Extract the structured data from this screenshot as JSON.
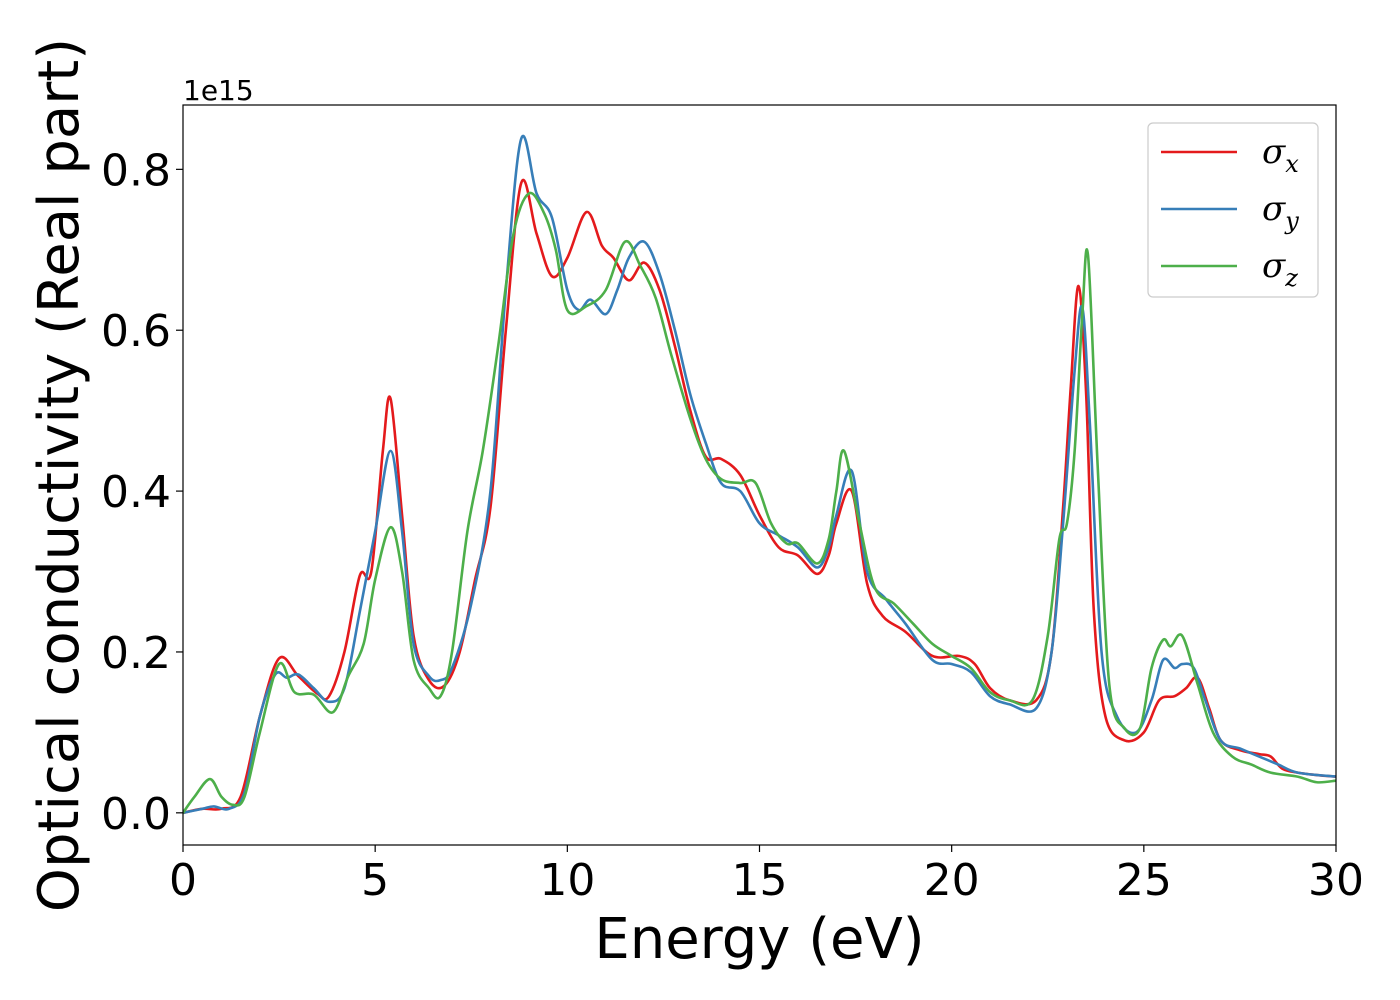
{
  "chart_data": {
    "type": "line",
    "xlabel": "Energy (eV)",
    "ylabel": "Optical conductivity (Real part)",
    "y_offset_label": "1e15",
    "xlim": [
      0,
      30
    ],
    "ylim": [
      -0.04,
      0.88
    ],
    "xticks": [
      0,
      5,
      10,
      15,
      20,
      25,
      30
    ],
    "xtick_labels": [
      "0",
      "5",
      "10",
      "15",
      "20",
      "25",
      "30"
    ],
    "yticks": [
      0.0,
      0.2,
      0.4,
      0.6,
      0.8
    ],
    "ytick_labels": [
      "0.0",
      "0.2",
      "0.4",
      "0.6",
      "0.8"
    ],
    "grid": false,
    "legend_position": "top-right",
    "series": [
      {
        "name": "σx",
        "symbol": "σ",
        "subscript": "x",
        "color": "#e41a1c",
        "points": [
          [
            0,
            0
          ],
          [
            0.5,
            0.005
          ],
          [
            1,
            0.005
          ],
          [
            1.5,
            0.02
          ],
          [
            2,
            0.12
          ],
          [
            2.5,
            0.192
          ],
          [
            3,
            0.17
          ],
          [
            3.5,
            0.148
          ],
          [
            3.8,
            0.145
          ],
          [
            4.2,
            0.2
          ],
          [
            4.6,
            0.295
          ],
          [
            4.9,
            0.3
          ],
          [
            5.2,
            0.45
          ],
          [
            5.4,
            0.515
          ],
          [
            5.7,
            0.37
          ],
          [
            6,
            0.22
          ],
          [
            6.4,
            0.165
          ],
          [
            6.8,
            0.158
          ],
          [
            7.2,
            0.2
          ],
          [
            7.6,
            0.29
          ],
          [
            8,
            0.38
          ],
          [
            8.4,
            0.6
          ],
          [
            8.8,
            0.783
          ],
          [
            9.2,
            0.72
          ],
          [
            9.6,
            0.667
          ],
          [
            10,
            0.69
          ],
          [
            10.5,
            0.747
          ],
          [
            10.9,
            0.705
          ],
          [
            11.2,
            0.69
          ],
          [
            11.6,
            0.662
          ],
          [
            12,
            0.684
          ],
          [
            12.4,
            0.65
          ],
          [
            12.8,
            0.58
          ],
          [
            13.2,
            0.5
          ],
          [
            13.6,
            0.443
          ],
          [
            14,
            0.44
          ],
          [
            14.5,
            0.42
          ],
          [
            15,
            0.37
          ],
          [
            15.5,
            0.33
          ],
          [
            16,
            0.32
          ],
          [
            16.5,
            0.297
          ],
          [
            16.8,
            0.32
          ],
          [
            17,
            0.36
          ],
          [
            17.4,
            0.4
          ],
          [
            17.8,
            0.285
          ],
          [
            18.2,
            0.245
          ],
          [
            18.8,
            0.225
          ],
          [
            19.5,
            0.195
          ],
          [
            20.2,
            0.195
          ],
          [
            20.6,
            0.185
          ],
          [
            21,
            0.155
          ],
          [
            21.5,
            0.14
          ],
          [
            22.2,
            0.14
          ],
          [
            22.6,
            0.2
          ],
          [
            22.9,
            0.38
          ],
          [
            23.1,
            0.53
          ],
          [
            23.3,
            0.655
          ],
          [
            23.5,
            0.52
          ],
          [
            23.7,
            0.25
          ],
          [
            24,
            0.12
          ],
          [
            24.5,
            0.09
          ],
          [
            25,
            0.1
          ],
          [
            25.4,
            0.14
          ],
          [
            25.8,
            0.145
          ],
          [
            26.1,
            0.155
          ],
          [
            26.4,
            0.168
          ],
          [
            26.7,
            0.13
          ],
          [
            27,
            0.09
          ],
          [
            27.5,
            0.078
          ],
          [
            28,
            0.073
          ],
          [
            28.3,
            0.07
          ],
          [
            28.6,
            0.055
          ],
          [
            29,
            0.05
          ],
          [
            29.5,
            0.047
          ],
          [
            30,
            0.045
          ]
        ]
      },
      {
        "name": "σy",
        "symbol": "σ",
        "subscript": "y",
        "color": "#377eb8",
        "points": [
          [
            0,
            0
          ],
          [
            0.5,
            0.005
          ],
          [
            0.8,
            0.008
          ],
          [
            1.2,
            0.005
          ],
          [
            1.6,
            0.025
          ],
          [
            2,
            0.12
          ],
          [
            2.4,
            0.172
          ],
          [
            2.7,
            0.168
          ],
          [
            3,
            0.172
          ],
          [
            3.4,
            0.155
          ],
          [
            3.8,
            0.138
          ],
          [
            4.2,
            0.155
          ],
          [
            4.6,
            0.25
          ],
          [
            5,
            0.35
          ],
          [
            5.4,
            0.45
          ],
          [
            5.7,
            0.35
          ],
          [
            6,
            0.21
          ],
          [
            6.4,
            0.17
          ],
          [
            6.7,
            0.165
          ],
          [
            7,
            0.18
          ],
          [
            7.5,
            0.26
          ],
          [
            8,
            0.4
          ],
          [
            8.4,
            0.65
          ],
          [
            8.8,
            0.838
          ],
          [
            9.2,
            0.77
          ],
          [
            9.6,
            0.74
          ],
          [
            10,
            0.65
          ],
          [
            10.3,
            0.625
          ],
          [
            10.6,
            0.638
          ],
          [
            11,
            0.62
          ],
          [
            11.3,
            0.65
          ],
          [
            11.6,
            0.69
          ],
          [
            12,
            0.71
          ],
          [
            12.4,
            0.67
          ],
          [
            12.8,
            0.6
          ],
          [
            13.2,
            0.52
          ],
          [
            13.6,
            0.46
          ],
          [
            14,
            0.41
          ],
          [
            14.5,
            0.4
          ],
          [
            15,
            0.36
          ],
          [
            15.5,
            0.345
          ],
          [
            16,
            0.33
          ],
          [
            16.5,
            0.305
          ],
          [
            16.8,
            0.33
          ],
          [
            17,
            0.37
          ],
          [
            17.4,
            0.425
          ],
          [
            17.8,
            0.3
          ],
          [
            18.3,
            0.265
          ],
          [
            18.8,
            0.235
          ],
          [
            19.5,
            0.19
          ],
          [
            20,
            0.185
          ],
          [
            20.5,
            0.175
          ],
          [
            21,
            0.145
          ],
          [
            21.5,
            0.135
          ],
          [
            22.2,
            0.13
          ],
          [
            22.6,
            0.2
          ],
          [
            22.9,
            0.36
          ],
          [
            23.2,
            0.55
          ],
          [
            23.4,
            0.628
          ],
          [
            23.6,
            0.48
          ],
          [
            23.9,
            0.2
          ],
          [
            24.3,
            0.12
          ],
          [
            24.8,
            0.1
          ],
          [
            25.2,
            0.14
          ],
          [
            25.5,
            0.19
          ],
          [
            25.8,
            0.18
          ],
          [
            26,
            0.185
          ],
          [
            26.3,
            0.18
          ],
          [
            26.6,
            0.14
          ],
          [
            27,
            0.09
          ],
          [
            27.5,
            0.08
          ],
          [
            28,
            0.07
          ],
          [
            28.5,
            0.06
          ],
          [
            29,
            0.05
          ],
          [
            30,
            0.045
          ]
        ]
      },
      {
        "name": "σz",
        "symbol": "σ",
        "subscript": "z",
        "color": "#4daf4a",
        "points": [
          [
            0,
            0
          ],
          [
            0.3,
            0.02
          ],
          [
            0.7,
            0.042
          ],
          [
            1,
            0.02
          ],
          [
            1.3,
            0.01
          ],
          [
            1.6,
            0.02
          ],
          [
            2,
            0.1
          ],
          [
            2.5,
            0.185
          ],
          [
            2.9,
            0.15
          ],
          [
            3.4,
            0.147
          ],
          [
            3.9,
            0.125
          ],
          [
            4.3,
            0.17
          ],
          [
            4.7,
            0.21
          ],
          [
            5,
            0.29
          ],
          [
            5.4,
            0.355
          ],
          [
            5.7,
            0.3
          ],
          [
            6,
            0.19
          ],
          [
            6.4,
            0.155
          ],
          [
            6.7,
            0.145
          ],
          [
            7,
            0.2
          ],
          [
            7.4,
            0.35
          ],
          [
            7.8,
            0.45
          ],
          [
            8.2,
            0.58
          ],
          [
            8.6,
            0.72
          ],
          [
            9,
            0.77
          ],
          [
            9.4,
            0.745
          ],
          [
            9.7,
            0.7
          ],
          [
            10,
            0.625
          ],
          [
            10.5,
            0.63
          ],
          [
            11,
            0.65
          ],
          [
            11.5,
            0.71
          ],
          [
            11.9,
            0.68
          ],
          [
            12.3,
            0.64
          ],
          [
            12.7,
            0.57
          ],
          [
            13.2,
            0.49
          ],
          [
            13.6,
            0.44
          ],
          [
            14,
            0.415
          ],
          [
            14.5,
            0.41
          ],
          [
            14.9,
            0.41
          ],
          [
            15.3,
            0.36
          ],
          [
            15.7,
            0.335
          ],
          [
            16,
            0.335
          ],
          [
            16.5,
            0.31
          ],
          [
            16.8,
            0.34
          ],
          [
            17,
            0.4
          ],
          [
            17.2,
            0.45
          ],
          [
            17.6,
            0.36
          ],
          [
            18,
            0.28
          ],
          [
            18.5,
            0.26
          ],
          [
            19,
            0.235
          ],
          [
            19.5,
            0.21
          ],
          [
            20,
            0.195
          ],
          [
            20.5,
            0.18
          ],
          [
            21,
            0.15
          ],
          [
            21.5,
            0.14
          ],
          [
            22.1,
            0.14
          ],
          [
            22.5,
            0.22
          ],
          [
            22.8,
            0.34
          ],
          [
            23,
            0.36
          ],
          [
            23.2,
            0.45
          ],
          [
            23.4,
            0.62
          ],
          [
            23.55,
            0.692
          ],
          [
            23.8,
            0.43
          ],
          [
            24.1,
            0.16
          ],
          [
            24.5,
            0.105
          ],
          [
            24.9,
            0.105
          ],
          [
            25.2,
            0.18
          ],
          [
            25.5,
            0.215
          ],
          [
            25.7,
            0.207
          ],
          [
            26,
            0.22
          ],
          [
            26.4,
            0.16
          ],
          [
            26.8,
            0.1
          ],
          [
            27.3,
            0.07
          ],
          [
            27.8,
            0.06
          ],
          [
            28.3,
            0.05
          ],
          [
            29,
            0.045
          ],
          [
            29.5,
            0.038
          ],
          [
            30,
            0.04
          ]
        ]
      }
    ]
  }
}
